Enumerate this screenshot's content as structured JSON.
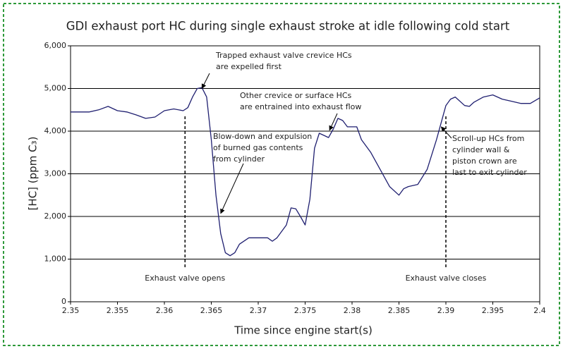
{
  "chart_data": {
    "type": "line",
    "title": "GDI exhaust port HC during single exhaust stroke at idle following cold start",
    "x_label": "Time since engine start(s)",
    "y_label": "[HC] (ppm C₃)",
    "xlim": [
      2.35,
      2.4
    ],
    "xticks": [
      2.35,
      2.355,
      2.36,
      2.365,
      2.37,
      2.375,
      2.38,
      2.385,
      2.39,
      2.395,
      2.4
    ],
    "ylim": [
      0,
      6000
    ],
    "yticks": [
      0,
      {
        "value": 1000,
        "label": "1,000"
      },
      {
        "value": 2000,
        "label": "2,000"
      },
      {
        "value": 3000,
        "label": "3,000"
      },
      {
        "value": 4000,
        "label": "4,000"
      },
      {
        "value": 5000,
        "label": "5,000"
      },
      {
        "value": 6000,
        "label": "6,000"
      }
    ],
    "grid": true,
    "series": [
      {
        "color": "#1f1f70",
        "x": [
          2.35,
          2.352,
          2.353,
          2.354,
          2.355,
          2.356,
          2.357,
          2.358,
          2.359,
          2.36,
          2.361,
          2.362,
          2.3625,
          2.363,
          2.3635,
          2.364,
          2.3645,
          2.365,
          2.3655,
          2.366,
          2.3665,
          2.367,
          2.3675,
          2.368,
          2.369,
          2.37,
          2.371,
          2.3715,
          2.372,
          2.373,
          2.3735,
          2.374,
          2.3745,
          2.375,
          2.3755,
          2.376,
          2.3765,
          2.377,
          2.3775,
          2.378,
          2.3785,
          2.379,
          2.3795,
          2.38,
          2.3805,
          2.381,
          2.382,
          2.383,
          2.384,
          2.385,
          2.3855,
          2.386,
          2.387,
          2.388,
          2.389,
          2.39,
          2.3905,
          2.391,
          2.392,
          2.3925,
          2.393,
          2.394,
          2.395,
          2.396,
          2.397,
          2.398,
          2.399,
          2.4
        ],
        "values": [
          4450,
          4450,
          4500,
          4580,
          4480,
          4450,
          4380,
          4300,
          4330,
          4480,
          4520,
          4480,
          4550,
          4800,
          5000,
          5020,
          4800,
          3800,
          2500,
          1600,
          1150,
          1080,
          1150,
          1350,
          1500,
          1500,
          1500,
          1420,
          1500,
          1800,
          2200,
          2180,
          2000,
          1800,
          2400,
          3600,
          3950,
          3900,
          3850,
          4050,
          4300,
          4250,
          4100,
          4100,
          4100,
          3800,
          3500,
          3100,
          2700,
          2500,
          2650,
          2700,
          2750,
          3100,
          3800,
          4600,
          4750,
          4800,
          4600,
          4580,
          4680,
          4800,
          4850,
          4750,
          4700,
          4650,
          4650,
          4780
        ]
      }
    ],
    "vlines": [
      {
        "x": 2.3622,
        "label": "Exhaust valve opens"
      },
      {
        "x": 2.39,
        "label": "Exhaust valve closes"
      }
    ],
    "annotations": [
      {
        "lines": [
          "Trapped exhaust valve crevice HCs",
          "are expelled first"
        ],
        "x": 2.364,
        "y": 5000
      },
      {
        "lines": [
          "Other crevice or surface HCs",
          "are entrained into exhaust flow"
        ],
        "x": 2.3776,
        "y": 4020
      },
      {
        "lines": [
          "Blow-down and expulsion",
          "of burned gas contents",
          "from cylinder"
        ],
        "x": 2.366,
        "y": 2070
      },
      {
        "lines": [
          "Scroll-up HCs from",
          "cylinder wall &",
          "piston crown are",
          "last to exit cylinder"
        ],
        "x": 2.3895,
        "y": 4100
      }
    ]
  }
}
